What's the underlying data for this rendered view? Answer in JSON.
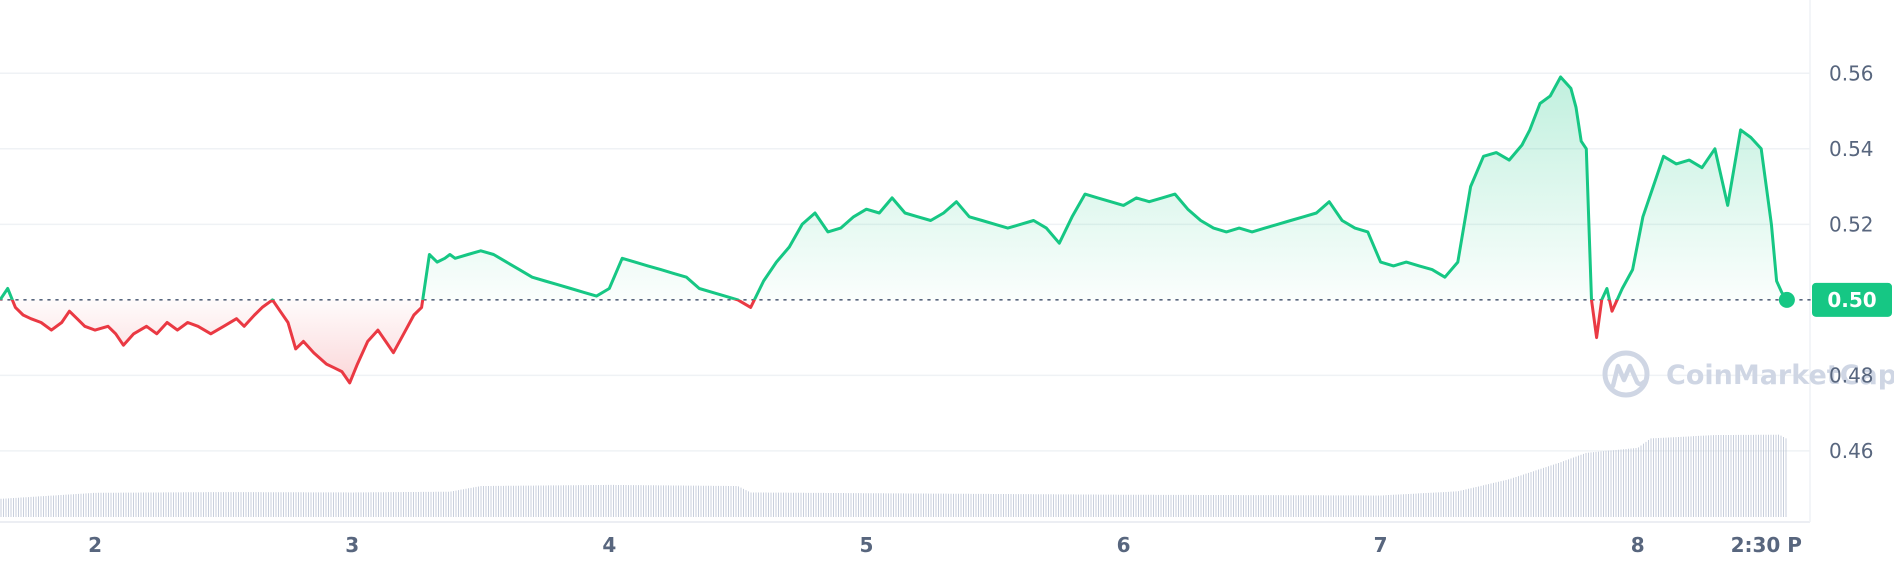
{
  "watermark": {
    "text": "CoinMarketCap",
    "icon": "coinmarketcap-logo-icon"
  },
  "colors": {
    "up": "#16c784",
    "down": "#ea3943",
    "grid": "#eff2f5",
    "volume": "#c8cfdc",
    "axis_text": "#58667e"
  },
  "current_price_label": "0.50",
  "chart_data": {
    "type": "line",
    "title": "",
    "xlabel": "",
    "ylabel": "",
    "baseline": 0.5,
    "ylim": [
      0.4425,
      0.5794
    ],
    "xlim": [
      1.63,
      8.67
    ],
    "grid": "horizontal",
    "y_ticks": [
      "0.46",
      "0.48",
      "0.50",
      "0.52",
      "0.54",
      "0.56"
    ],
    "x_ticks": [
      {
        "x": 2,
        "label": "2"
      },
      {
        "x": 3,
        "label": "3"
      },
      {
        "x": 4,
        "label": "4"
      },
      {
        "x": 5,
        "label": "5"
      },
      {
        "x": 6,
        "label": "6"
      },
      {
        "x": 7,
        "label": "7"
      },
      {
        "x": 8,
        "label": "8"
      },
      {
        "x": 8.5,
        "label": "2:30 P"
      }
    ],
    "series": [
      {
        "x": [
          1.63,
          1.66,
          1.69,
          1.72,
          1.75,
          1.79,
          1.83,
          1.87,
          1.9,
          1.93,
          1.96,
          2.0,
          2.05,
          2.08,
          2.11,
          2.15,
          2.2,
          2.24,
          2.28,
          2.32,
          2.36,
          2.4,
          2.45,
          2.5,
          2.55,
          2.58,
          2.62,
          2.65,
          2.69,
          2.72,
          2.75,
          2.78,
          2.81,
          2.85,
          2.9,
          2.93,
          2.96,
          2.99,
          3.02,
          3.06,
          3.1,
          3.13,
          3.16,
          3.2,
          3.24,
          3.27,
          3.3,
          3.33,
          3.36,
          3.38,
          3.4,
          3.45,
          3.5,
          3.55,
          3.6,
          3.65,
          3.7,
          3.75,
          3.8,
          3.85,
          3.9,
          3.95,
          4.0,
          4.05,
          4.1,
          4.15,
          4.2,
          4.25,
          4.3,
          4.35,
          4.4,
          4.45,
          4.5,
          4.55,
          4.6,
          4.65,
          4.7,
          4.75,
          4.8,
          4.85,
          4.9,
          4.95,
          5.0,
          5.05,
          5.1,
          5.15,
          5.2,
          5.25,
          5.3,
          5.35,
          5.4,
          5.45,
          5.5,
          5.55,
          5.6,
          5.65,
          5.7,
          5.75,
          5.8,
          5.85,
          5.9,
          5.95,
          6.0,
          6.05,
          6.1,
          6.15,
          6.2,
          6.25,
          6.3,
          6.35,
          6.4,
          6.45,
          6.5,
          6.55,
          6.6,
          6.65,
          6.7,
          6.75,
          6.8,
          6.85,
          6.9,
          6.95,
          7.0,
          7.05,
          7.1,
          7.15,
          7.2,
          7.25,
          7.3,
          7.35,
          7.4,
          7.45,
          7.5,
          7.55,
          7.58,
          7.62,
          7.66,
          7.7,
          7.74,
          7.76,
          7.78,
          7.8,
          7.82,
          7.84,
          7.86,
          7.88,
          7.9,
          7.94,
          7.98,
          8.02,
          8.06,
          8.1,
          8.15,
          8.2,
          8.25,
          8.3,
          8.35,
          8.4,
          8.44,
          8.48,
          8.5,
          8.52,
          8.54,
          8.56,
          8.58
        ],
        "values": [
          0.5,
          0.503,
          0.498,
          0.496,
          0.495,
          0.494,
          0.492,
          0.494,
          0.497,
          0.495,
          0.493,
          0.492,
          0.493,
          0.491,
          0.488,
          0.491,
          0.493,
          0.491,
          0.494,
          0.492,
          0.494,
          0.493,
          0.491,
          0.493,
          0.495,
          0.493,
          0.496,
          0.498,
          0.5,
          0.497,
          0.494,
          0.487,
          0.489,
          0.486,
          0.483,
          0.482,
          0.481,
          0.478,
          0.483,
          0.489,
          0.492,
          0.489,
          0.486,
          0.491,
          0.496,
          0.498,
          0.512,
          0.51,
          0.511,
          0.512,
          0.511,
          0.512,
          0.513,
          0.512,
          0.51,
          0.508,
          0.506,
          0.505,
          0.504,
          0.503,
          0.502,
          0.501,
          0.503,
          0.511,
          0.51,
          0.509,
          0.508,
          0.507,
          0.506,
          0.503,
          0.502,
          0.501,
          0.5,
          0.498,
          0.505,
          0.51,
          0.514,
          0.52,
          0.523,
          0.518,
          0.519,
          0.522,
          0.524,
          0.523,
          0.527,
          0.523,
          0.522,
          0.521,
          0.523,
          0.526,
          0.522,
          0.521,
          0.52,
          0.519,
          0.52,
          0.521,
          0.519,
          0.515,
          0.522,
          0.528,
          0.527,
          0.526,
          0.525,
          0.527,
          0.526,
          0.527,
          0.528,
          0.524,
          0.521,
          0.519,
          0.518,
          0.519,
          0.518,
          0.519,
          0.52,
          0.521,
          0.522,
          0.523,
          0.526,
          0.521,
          0.519,
          0.518,
          0.51,
          0.509,
          0.51,
          0.509,
          0.508,
          0.506,
          0.51,
          0.53,
          0.538,
          0.539,
          0.537,
          0.541,
          0.545,
          0.552,
          0.554,
          0.559,
          0.556,
          0.551,
          0.542,
          0.54,
          0.5,
          0.49,
          0.5,
          0.503,
          0.497,
          0.503,
          0.508,
          0.522,
          0.53,
          0.538,
          0.536,
          0.537,
          0.535,
          0.54,
          0.525,
          0.545,
          0.543,
          0.54,
          0.53,
          0.52,
          0.505,
          0.502,
          0.5
        ]
      }
    ],
    "volume": {
      "x": [
        1.63,
        2.0,
        2.5,
        3.0,
        3.38,
        3.5,
        4.0,
        4.5,
        4.55,
        5.0,
        6.0,
        7.0,
        7.3,
        7.5,
        7.7,
        7.8,
        8.0,
        8.05,
        8.3,
        8.55,
        8.58
      ],
      "values": [
        0.4473,
        0.4489,
        0.4491,
        0.449,
        0.4492,
        0.4507,
        0.451,
        0.4507,
        0.449,
        0.4488,
        0.4484,
        0.4482,
        0.4493,
        0.4525,
        0.457,
        0.4595,
        0.4608,
        0.4633,
        0.4642,
        0.4643,
        0.4632
      ]
    }
  }
}
